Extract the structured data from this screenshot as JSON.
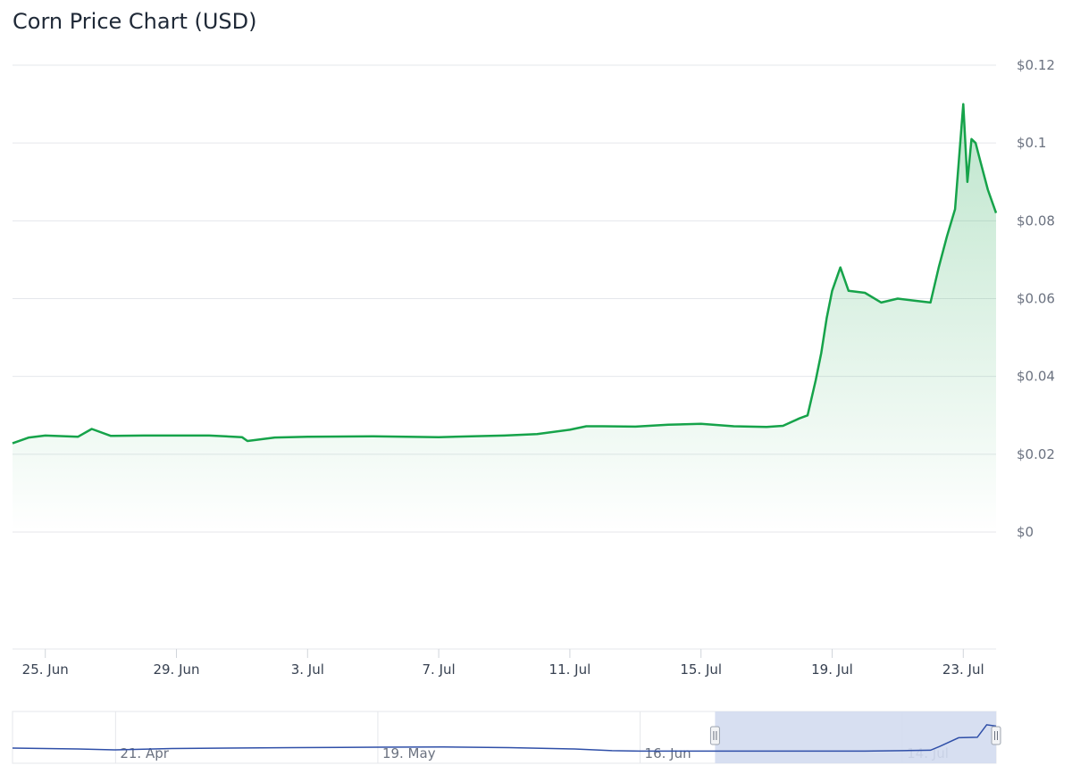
{
  "title": "Corn Price Chart (USD)",
  "colors": {
    "line": "#16a34a",
    "grid": "#e5e7eb",
    "navigator_line": "#2f4fa8",
    "navigator_mask": "#d3dbef"
  },
  "chart_data": {
    "type": "area",
    "title": "Corn Price Chart (USD)",
    "xlabel": "",
    "ylabel": "",
    "ylim": [
      0,
      0.12
    ],
    "xlim": [
      "2024-06-24",
      "2024-07-24"
    ],
    "grid": true,
    "legend": "none",
    "y_ticks": [
      "$0",
      "$0.02",
      "$0.04",
      "$0.06",
      "$0.08",
      "$0.1",
      "$0.12"
    ],
    "x_ticks": [
      "25. Jun",
      "29. Jun",
      "3. Jul",
      "7. Jul",
      "11. Jul",
      "15. Jul",
      "19. Jul",
      "23. Jul"
    ],
    "series": [
      {
        "x": [
          "2024-06-24",
          "2024-06-24 12:00",
          "2024-06-25",
          "2024-06-26",
          "2024-06-26 10:00",
          "2024-06-27",
          "2024-06-28",
          "2024-06-30",
          "2024-07-01",
          "2024-07-01 04:00",
          "2024-07-02",
          "2024-07-03",
          "2024-07-05",
          "2024-07-07",
          "2024-07-08",
          "2024-07-09",
          "2024-07-10",
          "2024-07-11",
          "2024-07-11 12:00",
          "2024-07-12",
          "2024-07-13",
          "2024-07-14",
          "2024-07-15",
          "2024-07-16",
          "2024-07-17",
          "2024-07-17 12:00",
          "2024-07-18",
          "2024-07-18 06:00",
          "2024-07-18 12:00",
          "2024-07-18 16:00",
          "2024-07-18 20:00",
          "2024-07-19",
          "2024-07-19 06:00",
          "2024-07-19 12:00",
          "2024-07-20",
          "2024-07-20 12:00",
          "2024-07-21",
          "2024-07-21 12:00",
          "2024-07-22",
          "2024-07-22 06:00",
          "2024-07-22 12:00",
          "2024-07-22 18:00",
          "2024-07-23",
          "2024-07-23 03:00",
          "2024-07-23 06:00",
          "2024-07-23 09:00",
          "2024-07-23 12:00",
          "2024-07-23 18:00",
          "2024-07-24"
        ],
        "y": [
          0.0228,
          0.0243,
          0.0248,
          0.0245,
          0.0265,
          0.0247,
          0.0248,
          0.0248,
          0.0244,
          0.0234,
          0.0243,
          0.0245,
          0.0246,
          0.0244,
          0.0246,
          0.0248,
          0.0252,
          0.0263,
          0.0272,
          0.0272,
          0.0271,
          0.0276,
          0.0278,
          0.0272,
          0.027,
          0.0273,
          0.0292,
          0.03,
          0.039,
          0.046,
          0.055,
          0.062,
          0.068,
          0.062,
          0.0615,
          0.059,
          0.06,
          0.0595,
          0.059,
          0.068,
          0.076,
          0.083,
          0.11,
          0.09,
          0.101,
          0.1,
          0.096,
          0.088,
          0.082
        ]
      }
    ]
  },
  "navigator": {
    "labels": [
      "21. Apr",
      "19. May",
      "16. Jun",
      "14. Jul"
    ],
    "xlim": [
      "2024-04-10",
      "2024-07-24"
    ],
    "selected_range": [
      "2024-06-24",
      "2024-07-24"
    ],
    "x": [
      "2024-04-10",
      "2024-04-17",
      "2024-04-21",
      "2024-04-27",
      "2024-05-03",
      "2024-05-10",
      "2024-05-19",
      "2024-05-26",
      "2024-06-02",
      "2024-06-09",
      "2024-06-13",
      "2024-06-16",
      "2024-06-21",
      "2024-06-26",
      "2024-07-10",
      "2024-07-14",
      "2024-07-17",
      "2024-07-18",
      "2024-07-20",
      "2024-07-22",
      "2024-07-23",
      "2024-07-24"
    ],
    "y": [
      0.031,
      0.029,
      0.027,
      0.03,
      0.031,
      0.032,
      0.033,
      0.0335,
      0.032,
      0.029,
      0.025,
      0.024,
      0.024,
      0.024,
      0.024,
      0.025,
      0.026,
      0.035,
      0.055,
      0.056,
      0.085,
      0.082
    ]
  }
}
